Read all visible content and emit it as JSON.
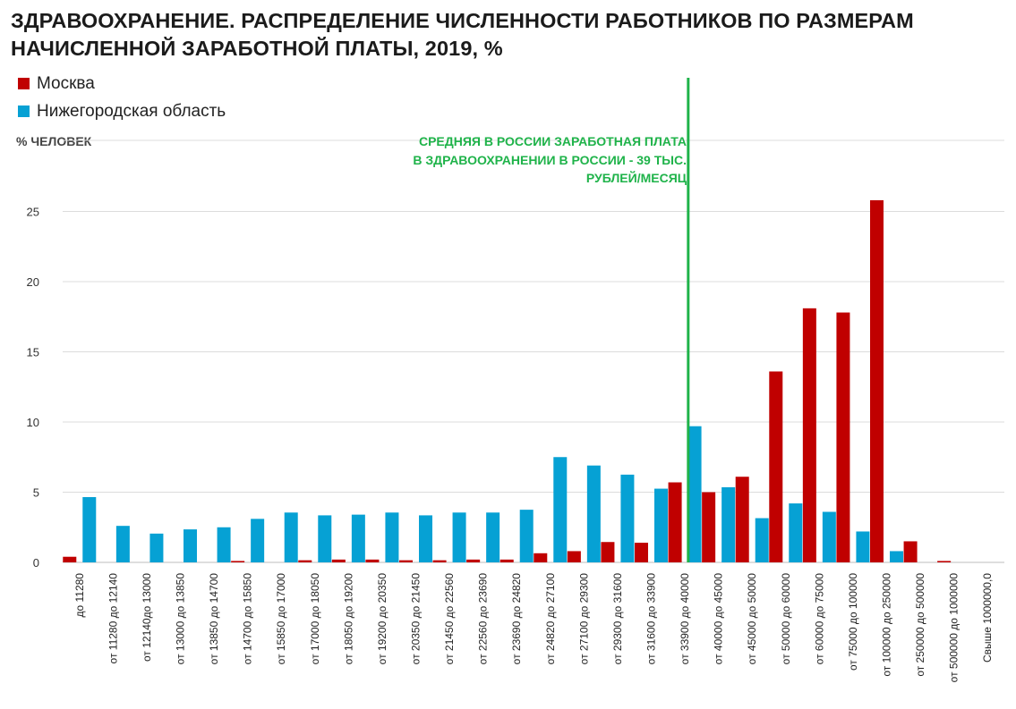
{
  "title": "ЗДРАВООХРАНЕНИЕ. РАСПРЕДЕЛЕНИЕ ЧИСЛЕННОСТИ РАБОТНИКОВ ПО РАЗМЕРАМ НАЧИСЛЕННОЙ ЗАРАБОТНОЙ ПЛАТЫ, 2019, %",
  "chart_data": {
    "type": "bar",
    "title": "ЗДРАВООХРАНЕНИЕ. РАСПРЕДЕЛЕНИЕ ЧИСЛЕННОСТИ РАБОТНИКОВ ПО РАЗМЕРАМ НАЧИСЛЕННОЙ ЗАРАБОТНОЙ ПЛАТЫ, 2019, %",
    "ylabel": "% ЧЕЛОВЕК",
    "xlabel": "",
    "ylim": [
      0,
      27
    ],
    "yticks": [
      0,
      5,
      10,
      15,
      20,
      25
    ],
    "grid": true,
    "legend_position": "top-left",
    "categories": [
      "до  11280",
      "от 11280 до 12140",
      "от 12140до 13000",
      "от 13000 до 13850",
      "от 13850 до 14700",
      "от 14700 до 15850",
      "от 15850 до 17000",
      "от 17000  до 18050",
      "от 18050 до 19200",
      "от 19200 до 20350",
      "от 20350 до 21450",
      "от 21450 до 22560",
      "от 22560 до 23690",
      "от 23690 до 24820",
      "от 24820 до 27100",
      "от 27100 до 29300",
      "от 29300 до 31600",
      "от 31600 до 33900",
      "от 33900 до 40000",
      "от 40000 до 45000",
      "от 45000 до 50000",
      "от 50000 до 60000",
      "от 60000 до 75000",
      "от 75000 до 100000",
      "от 100000 до 250000",
      "от 250000 до 500000",
      "от 500000 до 1000000",
      "Свыше 1000000,0"
    ],
    "series": [
      {
        "name": "Москва",
        "color": "#c00000",
        "values": [
          0.4,
          0.0,
          0.0,
          0.0,
          0.0,
          0.1,
          0.0,
          0.15,
          0.2,
          0.2,
          0.15,
          0.15,
          0.2,
          0.2,
          0.65,
          0.8,
          1.45,
          1.4,
          5.7,
          5.0,
          6.1,
          13.6,
          18.1,
          17.8,
          25.8,
          1.5,
          0.1,
          0.0
        ]
      },
      {
        "name": "Нижегородская область",
        "color": "#06a1d4",
        "values": [
          4.65,
          2.6,
          2.05,
          2.35,
          2.5,
          3.1,
          3.55,
          3.35,
          3.4,
          3.55,
          3.35,
          3.55,
          3.55,
          3.75,
          7.5,
          6.9,
          6.25,
          5.25,
          9.7,
          5.35,
          3.15,
          4.2,
          3.6,
          2.2,
          0.8,
          0.0,
          0.0,
          0.0
        ]
      }
    ],
    "reference_line": {
      "label_lines": [
        "СРЕДНЯЯ В РОССИИ ЗАРАБОТНАЯ ПЛАТА",
        "В ЗДРАВООХРАНЕНИИ В РОССИИ - 39 ТЫС.",
        "РУБЛЕЙ/МЕСЯЦ"
      ],
      "color": "#1fb34a",
      "category_position": 18.6
    }
  }
}
